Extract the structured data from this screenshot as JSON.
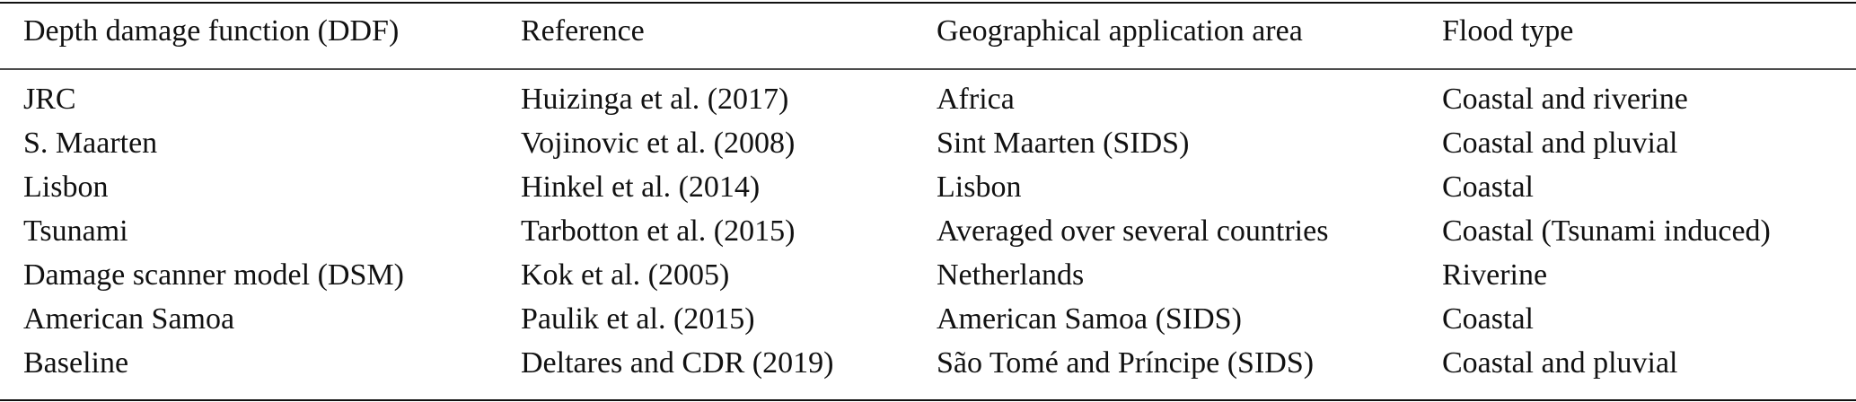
{
  "table": {
    "header": [
      "Depth damage function (DDF)",
      "Reference",
      "Geographical application area",
      "Flood type"
    ],
    "rows": [
      [
        "JRC",
        "Huizinga et al. (2017)",
        "Africa",
        "Coastal and riverine"
      ],
      [
        "S. Maarten",
        "Vojinovic et al. (2008)",
        "Sint Maarten (SIDS)",
        "Coastal and pluvial"
      ],
      [
        "Lisbon",
        "Hinkel et al. (2014)",
        "Lisbon",
        "Coastal"
      ],
      [
        "Tsunami",
        "Tarbotton et al. (2015)",
        "Averaged over several countries",
        "Coastal (Tsunami induced)"
      ],
      [
        "Damage scanner model (DSM)",
        "Kok et al. (2005)",
        "Netherlands",
        "Riverine"
      ],
      [
        "American Samoa",
        "Paulik et al. (2015)",
        "American Samoa (SIDS)",
        "Coastal"
      ],
      [
        "Baseline",
        "Deltares and CDR (2019)",
        "São Tomé and Príncipe (SIDS)",
        "Coastal and pluvial"
      ]
    ]
  }
}
